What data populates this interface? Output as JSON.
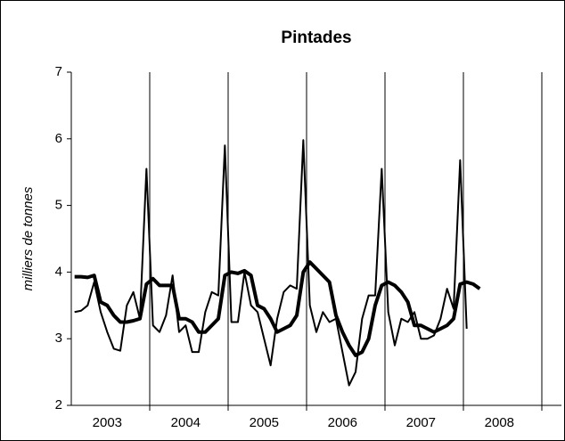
{
  "chart_data": {
    "type": "line",
    "title": "Pintades",
    "y_label": "milliers de tonnes",
    "categories": [
      null,
      null,
      null,
      null,
      null,
      "2003",
      null,
      null,
      null,
      null,
      null,
      null,
      null,
      null,
      null,
      null,
      null,
      "2004",
      null,
      null,
      null,
      null,
      null,
      null,
      null,
      null,
      null,
      null,
      null,
      "2005",
      null,
      null,
      null,
      null,
      null,
      null,
      null,
      null,
      null,
      null,
      null,
      "2006",
      null,
      null,
      null,
      null,
      null,
      null,
      null,
      null,
      null,
      null,
      null,
      "2007",
      null,
      null,
      null,
      null,
      null,
      null,
      null,
      null,
      null,
      null,
      null,
      "2008",
      null,
      null,
      null,
      null,
      null,
      null,
      null,
      null,
      null
    ],
    "series": [
      {
        "color": "#000000",
        "width": 2,
        "values": [
          3.4,
          3.42,
          3.5,
          3.85,
          3.4,
          3.1,
          2.85,
          2.82,
          3.5,
          3.7,
          3.3,
          5.55,
          3.2,
          3.1,
          3.35,
          3.95,
          3.1,
          3.2,
          2.8,
          2.8,
          3.4,
          3.7,
          3.65,
          5.9,
          3.25,
          3.25,
          4.0,
          3.5,
          3.4,
          3.0,
          2.6,
          3.3,
          3.7,
          3.8,
          3.75,
          5.98,
          3.5,
          3.1,
          3.4,
          3.25,
          3.3,
          2.8,
          2.3,
          2.5,
          3.3,
          3.65,
          3.65,
          5.55,
          3.4,
          2.9,
          3.3,
          3.25,
          3.4,
          3.0,
          3.0,
          3.05,
          3.3,
          3.75,
          3.45,
          5.68,
          3.15,
          null,
          null,
          null,
          null,
          null,
          null,
          null,
          null,
          null,
          null,
          null,
          null,
          null,
          null
        ]
      },
      {
        "color": "#000000",
        "width": 4,
        "values": [
          3.93,
          3.93,
          3.92,
          3.95,
          3.55,
          3.5,
          3.35,
          3.25,
          3.25,
          3.27,
          3.3,
          3.82,
          3.9,
          3.8,
          3.8,
          3.8,
          3.3,
          3.3,
          3.25,
          3.1,
          3.1,
          3.2,
          3.3,
          3.95,
          4.0,
          3.98,
          4.02,
          3.95,
          3.5,
          3.45,
          3.3,
          3.1,
          3.15,
          3.2,
          3.35,
          4.0,
          4.15,
          4.05,
          3.95,
          3.85,
          3.35,
          3.1,
          2.9,
          2.75,
          2.8,
          3.0,
          3.5,
          3.8,
          3.85,
          3.8,
          3.7,
          3.55,
          3.2,
          3.2,
          3.15,
          3.1,
          3.15,
          3.2,
          3.3,
          3.82,
          3.85,
          3.82,
          3.75,
          null,
          null,
          null,
          null,
          null,
          null,
          null,
          null,
          null,
          null,
          null,
          null
        ]
      }
    ],
    "ylim": [
      2,
      7
    ],
    "yticks": [
      2,
      3,
      4,
      5,
      6,
      7
    ]
  }
}
